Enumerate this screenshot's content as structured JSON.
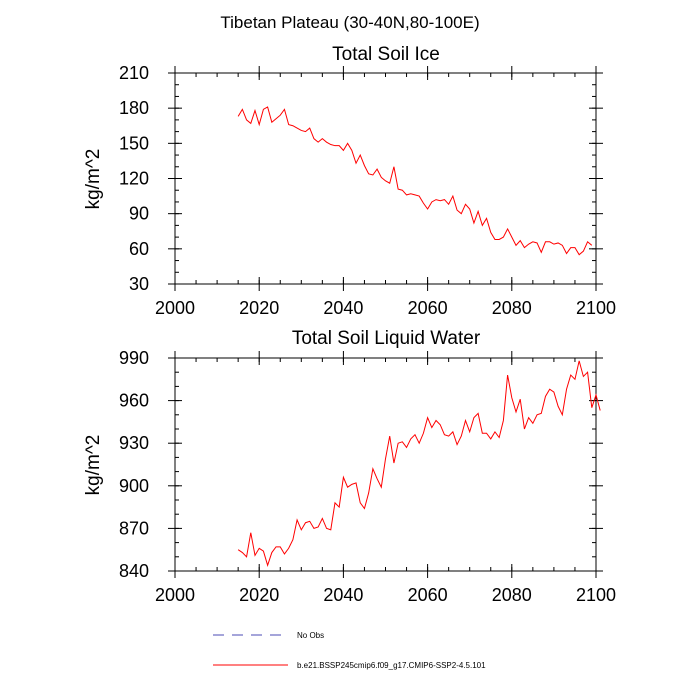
{
  "figure": {
    "title": "Tibetan Plateau (30-40N,80-100E)"
  },
  "legend": [
    {
      "label": "No Obs",
      "color": "#4b4bb4",
      "style": "dashed"
    },
    {
      "label": "b.e21.BSSP245cmip6.f09_g17.CMIP6-SSP2-4.5.101",
      "color": "#ff0000",
      "style": "solid"
    }
  ],
  "chart_data": [
    {
      "type": "line",
      "title": "Total Soil Ice",
      "xlabel": "",
      "ylabel": "kg/m^2",
      "xlim": [
        2000,
        2100
      ],
      "ylim": [
        30,
        210
      ],
      "xticks": [
        2000,
        2020,
        2040,
        2060,
        2080,
        2100
      ],
      "yticks": [
        30,
        60,
        90,
        120,
        150,
        180,
        210
      ],
      "x_minor_step": 5,
      "y_minor_step": 10,
      "series": [
        {
          "name": "b.e21.BSSP245cmip6.f09_g17.CMIP6-SSP2-4.5.101",
          "color": "#ff0000",
          "x_start": 2015,
          "x_step": 1,
          "values": [
            173,
            179,
            170,
            167,
            178,
            166,
            179,
            181,
            168,
            171,
            174,
            179,
            166,
            165,
            163,
            161,
            160,
            163,
            154,
            151,
            154,
            151,
            149,
            148,
            148,
            144,
            150,
            144,
            133,
            140,
            131,
            124,
            123,
            128,
            121,
            118,
            116,
            130,
            111,
            110,
            106,
            107,
            106,
            105,
            99,
            94,
            100,
            102,
            101,
            102,
            98,
            105,
            93,
            90,
            98,
            94,
            82,
            92,
            80,
            86,
            74,
            68,
            68,
            70,
            77,
            70,
            63,
            67,
            61,
            64,
            66,
            65,
            57,
            66,
            66,
            64,
            65,
            63,
            56,
            61,
            61,
            55,
            58,
            66,
            63
          ]
        }
      ]
    },
    {
      "type": "line",
      "title": "Total Soil Liquid Water",
      "xlabel": "",
      "ylabel": "kg/m^2",
      "xlim": [
        2000,
        2100
      ],
      "ylim": [
        840,
        990
      ],
      "xticks": [
        2000,
        2020,
        2040,
        2060,
        2080,
        2100
      ],
      "yticks": [
        840,
        870,
        900,
        930,
        960,
        990
      ],
      "x_minor_step": 5,
      "y_minor_step": 10,
      "series": [
        {
          "name": "b.e21.BSSP245cmip6.f09_g17.CMIP6-SSP2-4.5.101",
          "color": "#ff0000",
          "x_start": 2015,
          "x_step": 1,
          "values": [
            855,
            853,
            850,
            867,
            851,
            856,
            854,
            844,
            853,
            857,
            857,
            852,
            856,
            862,
            876,
            869,
            874,
            875,
            870,
            871,
            877,
            870,
            869,
            888,
            885,
            906,
            899,
            901,
            902,
            888,
            884,
            895,
            912,
            905,
            899,
            919,
            935,
            916,
            930,
            931,
            927,
            933,
            936,
            930,
            937,
            948,
            941,
            946,
            943,
            936,
            935,
            938,
            929,
            935,
            946,
            938,
            948,
            951,
            937,
            937,
            933,
            938,
            934,
            946,
            978,
            962,
            952,
            961,
            940,
            948,
            944,
            950,
            951,
            963,
            968,
            966,
            956,
            950,
            968,
            978,
            975,
            988,
            977,
            980,
            955,
            964,
            953
          ]
        }
      ]
    }
  ]
}
